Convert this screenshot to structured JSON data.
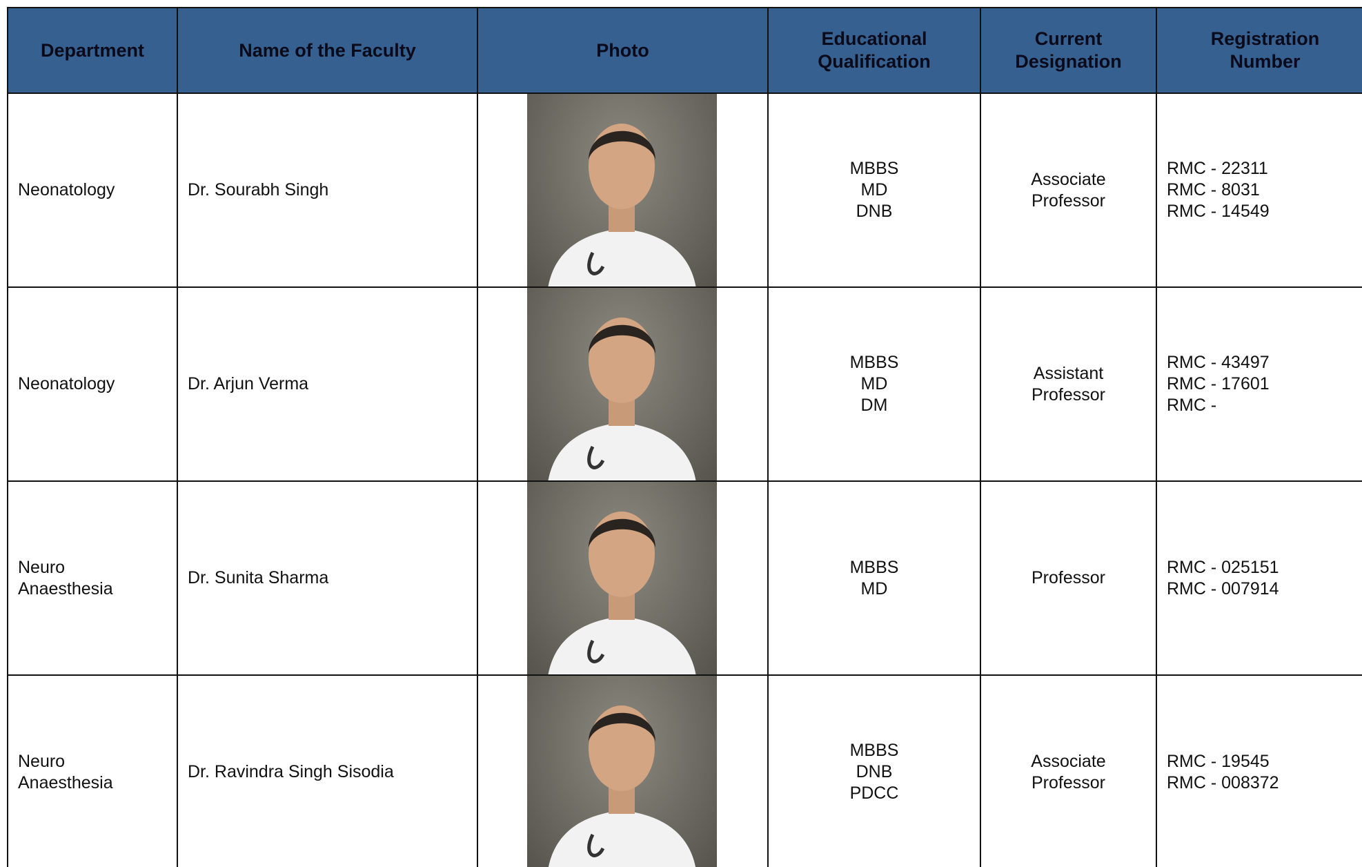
{
  "table": {
    "headers": [
      [
        "Department"
      ],
      [
        "Name of the Faculty"
      ],
      [
        "Photo"
      ],
      [
        "Educational",
        "Qualification"
      ],
      [
        "Current",
        "Designation"
      ],
      [
        "Registration",
        "Number"
      ]
    ],
    "rows": [
      {
        "department": [
          "Neonatology"
        ],
        "name": "Dr. Sourabh Singh",
        "qualification": [
          "MBBS",
          "MD",
          "DNB"
        ],
        "designation": [
          "Associate",
          "Professor"
        ],
        "registration": [
          "RMC - 22311",
          "RMC - 8031",
          "RMC - 14549"
        ]
      },
      {
        "department": [
          "Neonatology"
        ],
        "name": "Dr. Arjun Verma",
        "qualification": [
          "MBBS",
          "MD",
          "DM"
        ],
        "designation": [
          "Assistant",
          "Professor"
        ],
        "registration": [
          "RMC - 43497",
          "RMC - 17601",
          "RMC -"
        ]
      },
      {
        "department": [
          "Neuro",
          "Anaesthesia"
        ],
        "name": "Dr. Sunita Sharma",
        "qualification": [
          "MBBS",
          "MD"
        ],
        "designation": [
          "Professor"
        ],
        "registration": [
          "RMC - 025151",
          "RMC - 007914"
        ]
      },
      {
        "department": [
          "Neuro",
          "Anaesthesia"
        ],
        "name": "Dr. Ravindra Singh Sisodia",
        "qualification": [
          "MBBS",
          "DNB",
          "PDCC"
        ],
        "designation": [
          "Associate",
          "Professor"
        ],
        "registration": [
          "RMC - 19545",
          "RMC - 008372"
        ]
      }
    ]
  }
}
